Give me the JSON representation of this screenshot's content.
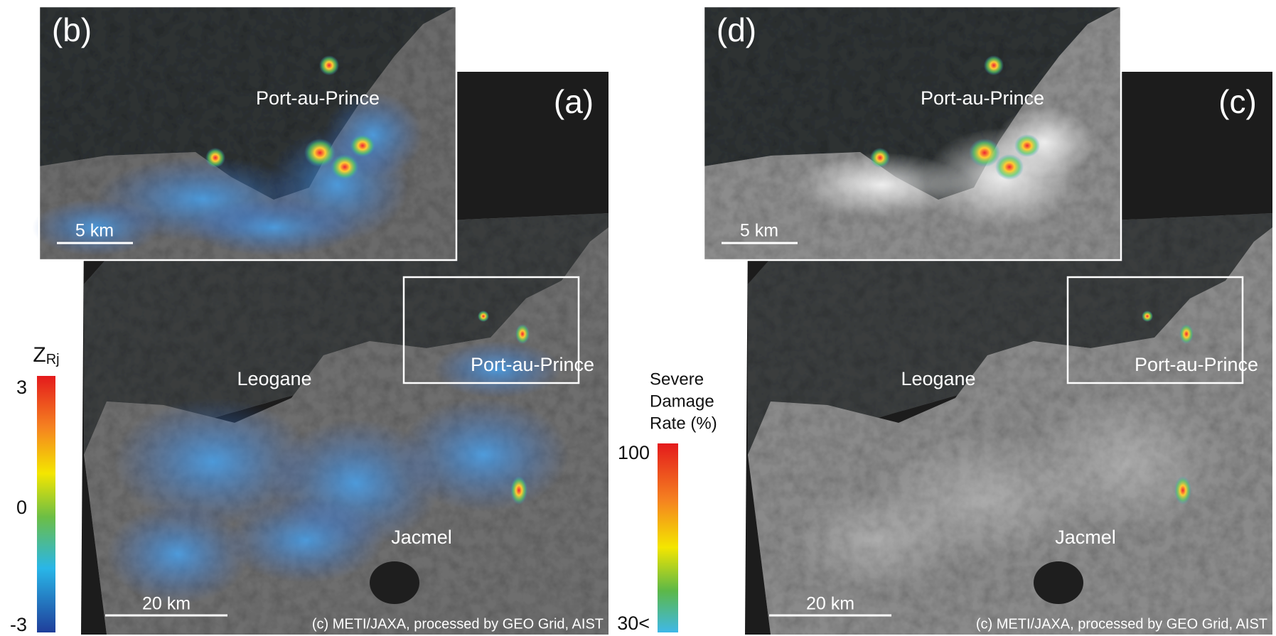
{
  "panels": [
    {
      "label": "(a)",
      "inset_label": "(b)",
      "inset_city": "Port-au-Prince",
      "inset_scale": "5 km",
      "cities": [
        "Leogane",
        "Port-au-Prince",
        "Jacmel"
      ],
      "scale": "20 km",
      "credit": "(c) METI/JAXA, processed by GEO Grid, AIST"
    },
    {
      "label": "(c)",
      "inset_label": "(d)",
      "inset_city": "Port-au-Prince",
      "inset_scale": "5 km",
      "cities": [
        "Leogane",
        "Port-au-Prince",
        "Jacmel"
      ],
      "scale": "20 km",
      "credit": "(c) METI/JAXA, processed by GEO Grid, AIST"
    }
  ],
  "legend_left": {
    "title": "Z",
    "subscript": "Rj",
    "ticks": [
      "3",
      "0",
      "-3"
    ]
  },
  "legend_right": {
    "title_lines": [
      "Severe",
      "Damage",
      "Rate (%)"
    ],
    "ticks": [
      "100",
      "30<"
    ]
  }
}
